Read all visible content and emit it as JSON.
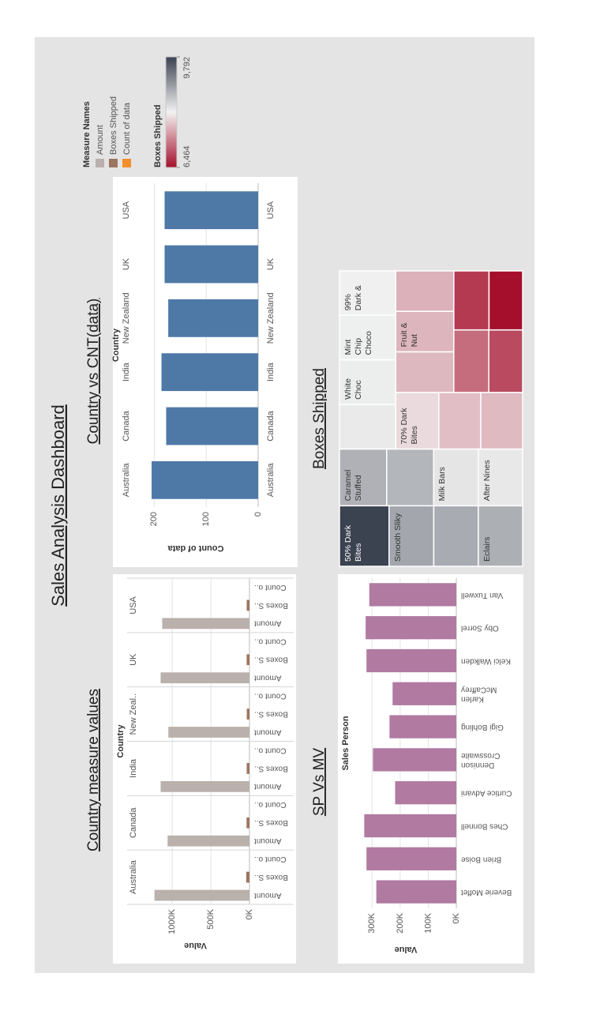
{
  "title": "Sales Analysis Dashboard",
  "chart_data": [
    {
      "type": "grouped-bar",
      "title": "Country measure values",
      "column_header": "Country",
      "categories": [
        "Australia",
        "Canada",
        "India",
        "New Zeal..",
        "UK",
        "USA"
      ],
      "measure_labels": [
        "Amount",
        "Boxes S..",
        "Count o.."
      ],
      "legend_title": "Measure Names",
      "series": [
        {
          "name": "Amount",
          "color": "#bab0ac",
          "values": [
            1230000,
            1060000,
            1150000,
            1050000,
            1150000,
            1130000
          ]
        },
        {
          "name": "Boxes Shipped",
          "color": "#9c755f",
          "values": [
            42000,
            38000,
            36000,
            35000,
            37000,
            36000
          ]
        },
        {
          "name": "Count of data",
          "color": "#f28e2b",
          "values": [
            205,
            177,
            186,
            173,
            180,
            180
          ]
        }
      ],
      "y_label": "Value",
      "ylim": [
        0,
        1400000
      ],
      "yticks": [
        {
          "value": 0,
          "label": "0K"
        },
        {
          "value": 500000,
          "label": "500K"
        },
        {
          "value": 1000000,
          "label": "1000K"
        }
      ],
      "grid": true
    },
    {
      "type": "bar",
      "title": "Country vs CNT(data)",
      "column_header": "Country",
      "categories": [
        "Australia",
        "Canada",
        "India",
        "New Zealand",
        "UK",
        "USA"
      ],
      "values": [
        205,
        177,
        186,
        173,
        180,
        180
      ],
      "color": "#4e79a7",
      "y_label": "Count of data",
      "ylim": [
        0,
        240
      ],
      "yticks": [
        0,
        100,
        200
      ],
      "grid": true
    },
    {
      "type": "bar",
      "title": "SP Vs MV",
      "column_header": "Sales Person",
      "categories": [
        "Beverie Moffet",
        "Brien Boise",
        "Ches Bonnell",
        "Curtice Advani",
        "Dennison Crosswaite",
        "Gigi Bohling",
        "Karlen McCaffrey",
        "Kelci Walkden",
        "Oby Sorrel",
        "Van Tuxwell"
      ],
      "values": [
        285000,
        320000,
        328000,
        218000,
        297000,
        238000,
        227000,
        320000,
        323000,
        310000
      ],
      "color": "#b07aa1",
      "y_label": "Value",
      "ylim": [
        0,
        360000
      ],
      "yticks": [
        {
          "value": 0,
          "label": "0K"
        },
        {
          "value": 100000,
          "label": "100K"
        },
        {
          "value": 200000,
          "label": "200K"
        },
        {
          "value": 300000,
          "label": "300K"
        }
      ],
      "grid": true
    },
    {
      "type": "treemap",
      "title": "Boxes Shipped",
      "categories": [
        "50% Dark Bites",
        "Smooth Sliky",
        null,
        "Eclairs",
        "Caramel Stuffed",
        null,
        "Milk Bars",
        "After Nines",
        null,
        "White Choc",
        "Mint Chip Choco",
        "99% Dark &",
        "70% Dark Bites",
        null,
        null,
        null,
        "Fruit & Nut",
        null,
        null,
        null,
        null,
        null
      ],
      "values": [
        9792,
        8850,
        8800,
        8760,
        8740,
        8700,
        8250,
        8220,
        8200,
        8180,
        8160,
        8150,
        7950,
        7750,
        7720,
        7700,
        7680,
        7650,
        7150,
        6900,
        6780,
        6464
      ],
      "color_label": "Boxes Shipped",
      "color_range": [
        "#a50f2b",
        "#f2f2f2",
        "#3b4250"
      ],
      "clim": [
        6464,
        9792
      ],
      "cticks": [
        {
          "value": 6464,
          "label": "6,464"
        },
        {
          "value": 9792,
          "label": "9,792"
        }
      ]
    }
  ]
}
